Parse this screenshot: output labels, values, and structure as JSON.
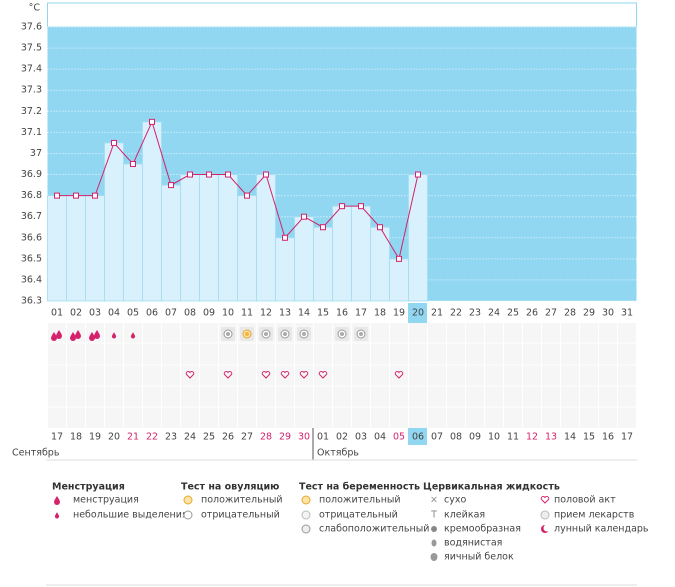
{
  "chart_data": {
    "type": "line",
    "unit": "°C",
    "categories": [
      "01",
      "02",
      "03",
      "04",
      "05",
      "06",
      "07",
      "08",
      "09",
      "10",
      "11",
      "12",
      "13",
      "14",
      "15",
      "16",
      "17",
      "18",
      "19",
      "20",
      "21",
      "22",
      "23",
      "24",
      "25",
      "26",
      "27",
      "28",
      "29",
      "30",
      "31"
    ],
    "values": [
      36.8,
      36.8,
      36.8,
      37.05,
      36.95,
      37.15,
      36.85,
      36.9,
      36.9,
      36.9,
      36.8,
      36.9,
      36.6,
      36.7,
      36.65,
      36.75,
      36.75,
      36.65,
      36.5,
      36.9,
      null,
      null,
      null,
      null,
      null,
      null,
      null,
      null,
      null,
      null,
      null
    ],
    "color": "#d4226b",
    "bar_color": "#d8f1fc",
    "background_color": "#92d7f2",
    "ylim": [
      36.3,
      37.6
    ],
    "yticks": [
      36.3,
      36.4,
      36.5,
      36.6,
      36.7,
      36.8,
      36.9,
      37,
      37.1,
      37.2,
      37.3,
      37.4,
      37.5,
      37.6
    ],
    "grid": true,
    "dates": [
      {
        "label": "17"
      },
      {
        "label": "18"
      },
      {
        "label": "19"
      },
      {
        "label": "20"
      },
      {
        "label": "21",
        "color": "#d4226b"
      },
      {
        "label": "22",
        "color": "#d4226b"
      },
      {
        "label": "23"
      },
      {
        "label": "24"
      },
      {
        "label": "25"
      },
      {
        "label": "26"
      },
      {
        "label": "27"
      },
      {
        "label": "28",
        "color": "#d4226b"
      },
      {
        "label": "29",
        "color": "#d4226b"
      },
      {
        "label": "30",
        "color": "#d4226b"
      },
      {
        "label": "01"
      },
      {
        "label": "02"
      },
      {
        "label": "03"
      },
      {
        "label": "04"
      },
      {
        "label": "05",
        "color": "#d4226b"
      },
      {
        "label": "06"
      },
      {
        "label": "07"
      },
      {
        "label": "08"
      },
      {
        "label": "09"
      },
      {
        "label": "10"
      },
      {
        "label": "11"
      },
      {
        "label": "12",
        "color": "#d4226b"
      },
      {
        "label": "13",
        "color": "#d4226b"
      },
      {
        "label": "14"
      },
      {
        "label": "15"
      },
      {
        "label": "16"
      },
      {
        "label": "17"
      }
    ],
    "months": [
      "Сентябрь",
      "Октябрь"
    ]
  },
  "legend": {
    "menstruation": {
      "title": "Менструация",
      "items": [
        "менструация",
        "небольшие выделения"
      ]
    },
    "ovulation_test": {
      "title": "Тест на овуляцию",
      "items": [
        "положительный",
        "отрицательный"
      ]
    },
    "pregnancy_test": {
      "title": "Тест на беременность",
      "items": [
        "положительный",
        "отрицательный",
        "слабоположительный"
      ]
    },
    "cervical_fluid": {
      "title": "Цервикальная жидкость",
      "items": [
        "сухо",
        "клейкая",
        "кремообразная",
        "водянистая",
        "яичный белок"
      ]
    },
    "other": {
      "items": [
        "половой акт",
        "прием лекарств",
        "лунный календарь"
      ]
    }
  }
}
